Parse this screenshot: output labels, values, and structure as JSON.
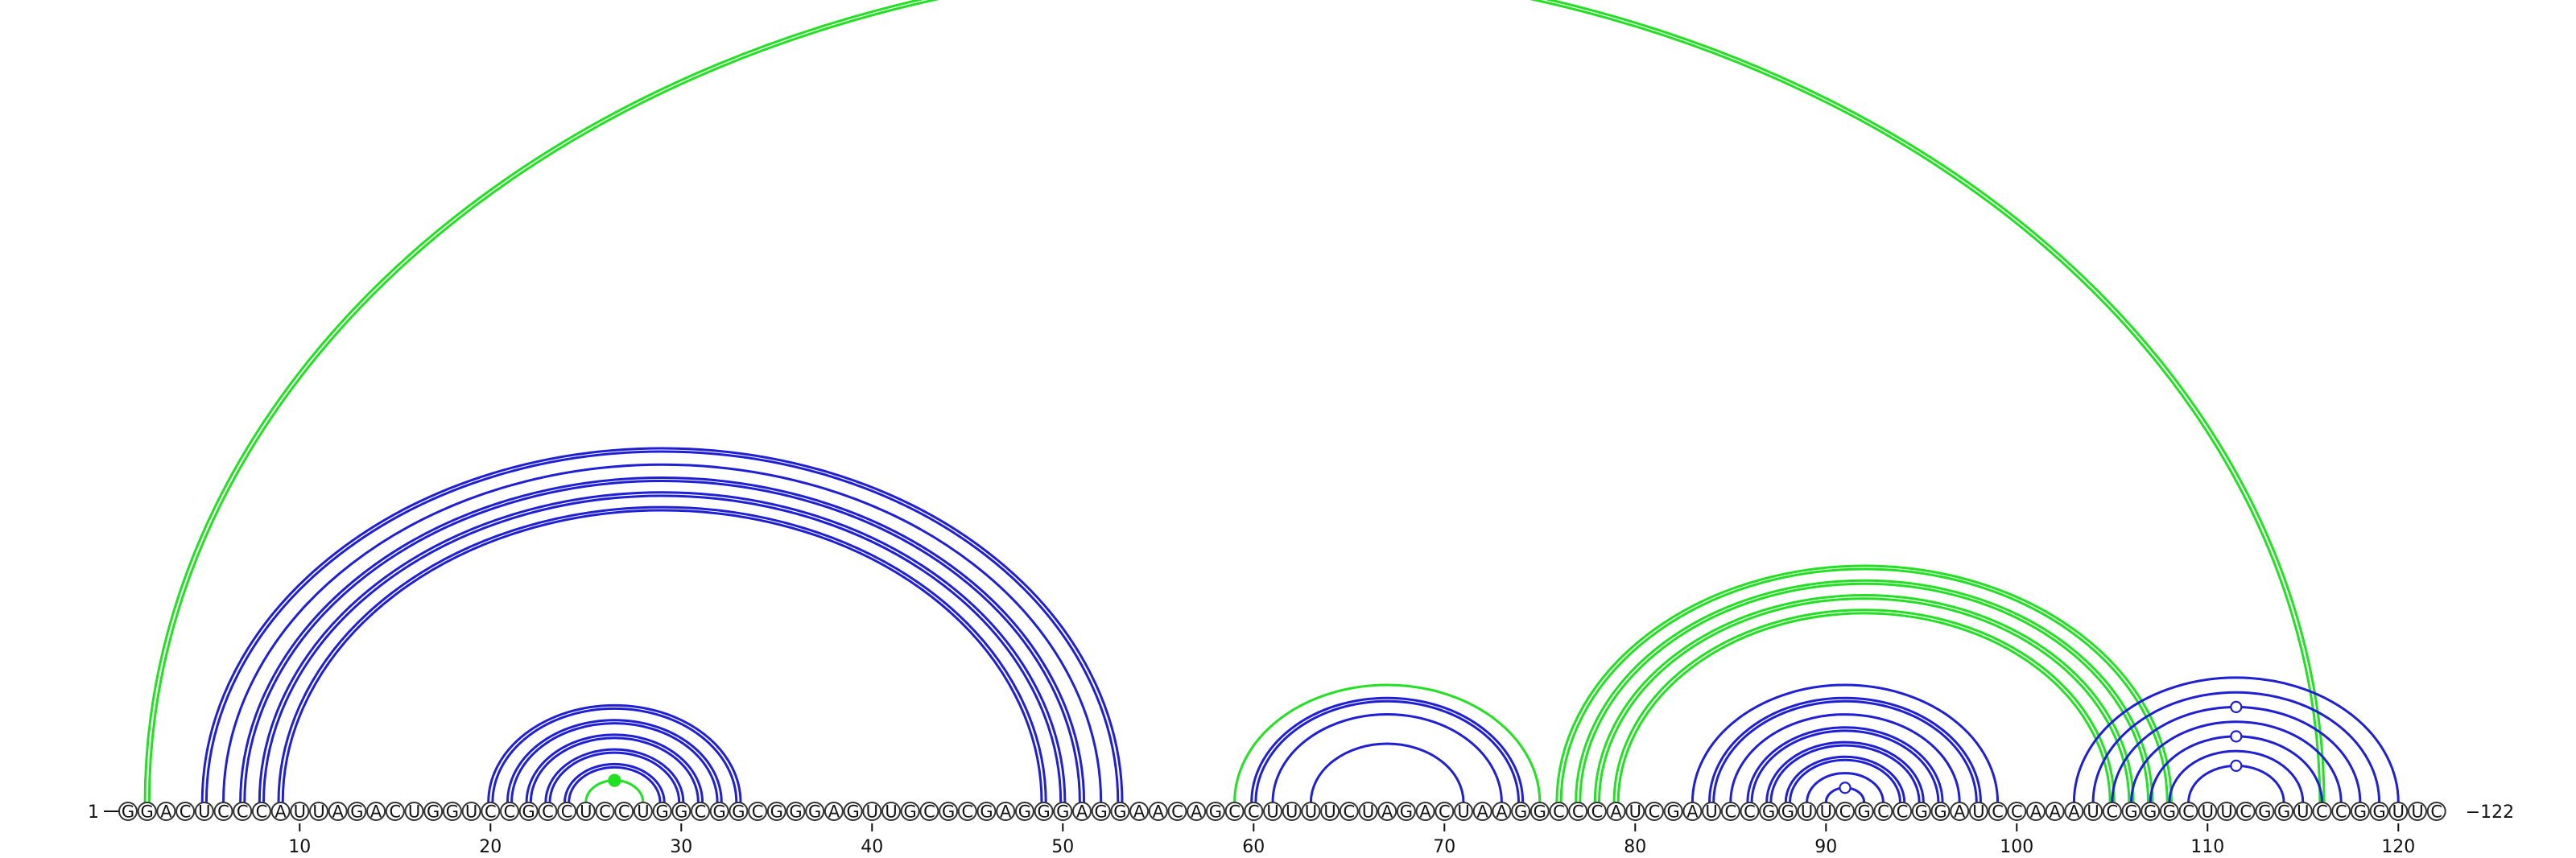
{
  "sequence": "GGACUCCCAUUAGACUGGUCCGCCUCCUGGCGGCGGGAGUUGCGCGAGGGAGGAACAGCCUUUUCUAGACUAAGGCCCAUCGAUCCGGUUCGCCGGAUCCAAAUCGGGCUUCGGUCCGGUUC",
  "start_label": "1",
  "end_label": "122",
  "ticks": [
    10,
    20,
    30,
    40,
    50,
    60,
    70,
    80,
    90,
    100,
    110,
    120
  ],
  "colors": {
    "blue": "#1f1fd6",
    "green": "#22e022"
  },
  "arcs": [
    {
      "i": 2,
      "j": 116,
      "color": "green",
      "double": true
    },
    {
      "i": 5,
      "j": 53,
      "color": "blue",
      "double": true
    },
    {
      "i": 6,
      "j": 52,
      "color": "blue",
      "double": false
    },
    {
      "i": 7,
      "j": 51,
      "color": "blue",
      "double": true
    },
    {
      "i": 8,
      "j": 50,
      "color": "blue",
      "double": true
    },
    {
      "i": 9,
      "j": 49,
      "color": "blue",
      "double": true
    },
    {
      "i": 20,
      "j": 33,
      "color": "blue",
      "double": true
    },
    {
      "i": 21,
      "j": 32,
      "color": "blue",
      "double": true
    },
    {
      "i": 22,
      "j": 31,
      "color": "blue",
      "double": true
    },
    {
      "i": 23,
      "j": 30,
      "color": "blue",
      "double": true
    },
    {
      "i": 24,
      "j": 29,
      "color": "blue",
      "double": true
    },
    {
      "i": 25,
      "j": 28,
      "color": "green",
      "double": false,
      "marker": "filled"
    },
    {
      "i": 59,
      "j": 75,
      "color": "green",
      "double": false
    },
    {
      "i": 60,
      "j": 74,
      "color": "blue",
      "double": true
    },
    {
      "i": 61,
      "j": 73,
      "color": "blue",
      "double": false
    },
    {
      "i": 63,
      "j": 71,
      "color": "blue",
      "double": false
    },
    {
      "i": 76,
      "j": 108,
      "color": "green",
      "double": true
    },
    {
      "i": 77,
      "j": 107,
      "color": "green",
      "double": true
    },
    {
      "i": 78,
      "j": 106,
      "color": "green",
      "double": true
    },
    {
      "i": 79,
      "j": 105,
      "color": "green",
      "double": true
    },
    {
      "i": 83,
      "j": 99,
      "color": "blue",
      "double": false
    },
    {
      "i": 84,
      "j": 98,
      "color": "blue",
      "double": true
    },
    {
      "i": 85,
      "j": 97,
      "color": "blue",
      "double": false
    },
    {
      "i": 86,
      "j": 96,
      "color": "blue",
      "double": true
    },
    {
      "i": 87,
      "j": 95,
      "color": "blue",
      "double": true
    },
    {
      "i": 88,
      "j": 94,
      "color": "blue",
      "double": true
    },
    {
      "i": 89,
      "j": 93,
      "color": "blue",
      "double": false
    },
    {
      "i": 90,
      "j": 92,
      "color": "blue",
      "double": false,
      "marker": "open"
    },
    {
      "i": 103,
      "j": 120,
      "color": "blue",
      "double": false
    },
    {
      "i": 104,
      "j": 119,
      "color": "blue",
      "double": false
    },
    {
      "i": 105,
      "j": 118,
      "color": "blue",
      "double": false,
      "marker": "open"
    },
    {
      "i": 106,
      "j": 117,
      "color": "blue",
      "double": false
    },
    {
      "i": 107,
      "j": 116,
      "color": "blue",
      "double": false,
      "marker": "open"
    },
    {
      "i": 108,
      "j": 115,
      "color": "blue",
      "double": false
    },
    {
      "i": 109,
      "j": 114,
      "color": "blue",
      "double": false,
      "marker": "open"
    }
  ]
}
